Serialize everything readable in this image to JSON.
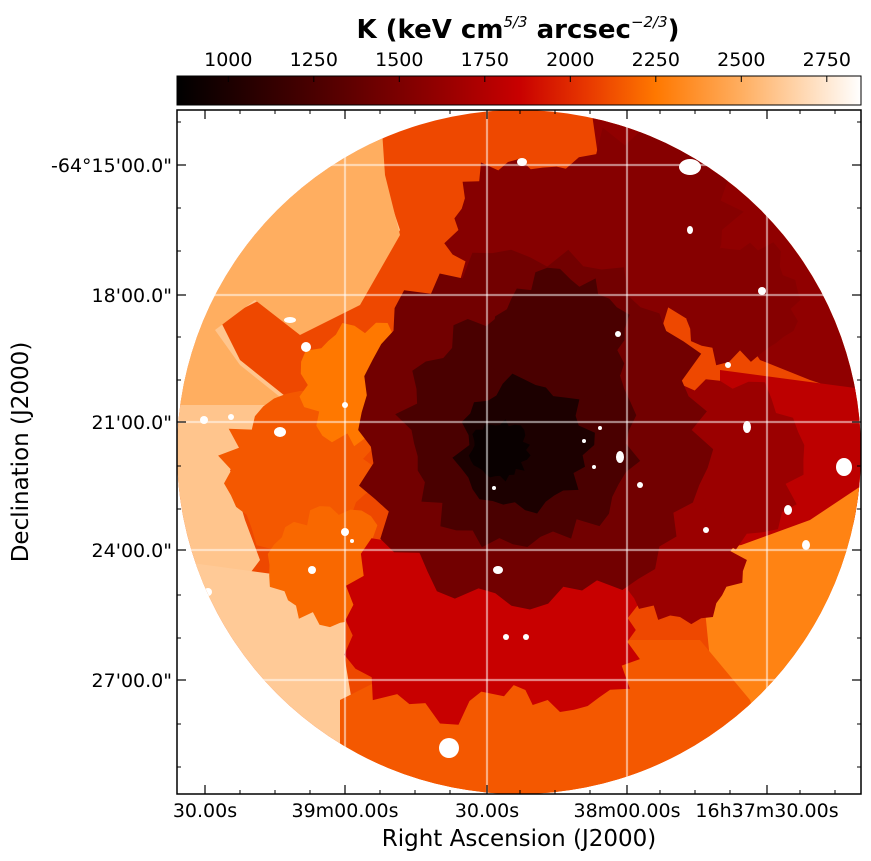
{
  "chart_data": {
    "type": "heatmap",
    "title": {
      "prefix": "K (keV cm",
      "sup1": "5/3",
      "middle": " arcsec",
      "sup2": "−2/3",
      "suffix": ")"
    },
    "xlabel": "Right Ascension (J2000)",
    "ylabel": "Declination (J2000)",
    "colorbar": {
      "range": [
        850,
        2850
      ],
      "ticks": [
        1000,
        1250,
        1500,
        1750,
        2000,
        2250,
        2500,
        2750
      ],
      "colormap": "gist_heat",
      "stops": [
        {
          "value": 850,
          "color": "#000000"
        },
        {
          "value": 1250,
          "color": "#4a0000"
        },
        {
          "value": 1600,
          "color": "#900000"
        },
        {
          "value": 1850,
          "color": "#c80000"
        },
        {
          "value": 2050,
          "color": "#e83800"
        },
        {
          "value": 2250,
          "color": "#ff7800"
        },
        {
          "value": 2500,
          "color": "#ffae60"
        },
        {
          "value": 2850,
          "color": "#ffffff"
        }
      ]
    },
    "x_ticks": [
      "30.00s",
      "39m00.00s",
      "30.00s",
      "38m00.00s",
      "16h37m30.00s"
    ],
    "y_ticks": [
      "-64°15'00.0\"",
      "18'00.0\"",
      "21'00.0\"",
      "24'00.0\"",
      "27'00.0\""
    ],
    "grid": true,
    "regions": [
      {
        "name": "north-west-outer",
        "value": 2500
      },
      {
        "name": "west-outer",
        "value": 2600
      },
      {
        "name": "south-west-outer",
        "value": 2620
      },
      {
        "name": "north-outer",
        "value": 2100
      },
      {
        "name": "north-east-outer",
        "value": 1600
      },
      {
        "name": "east-outer",
        "value": 1800
      },
      {
        "name": "south-east-outer",
        "value": 2300
      },
      {
        "name": "south-outer",
        "value": 2150
      },
      {
        "name": "west-inner",
        "value": 2150
      },
      {
        "name": "north-west-inner",
        "value": 2250
      },
      {
        "name": "south-west-inner",
        "value": 2200
      },
      {
        "name": "south-inner",
        "value": 1850
      },
      {
        "name": "east-inner",
        "value": 1650
      },
      {
        "name": "north-inner",
        "value": 1550
      },
      {
        "name": "ring-inner",
        "value": 1450
      },
      {
        "name": "core-ring",
        "value": 1250
      },
      {
        "name": "core",
        "value": 1000
      },
      {
        "name": "core-peak",
        "value": 900
      }
    ]
  }
}
